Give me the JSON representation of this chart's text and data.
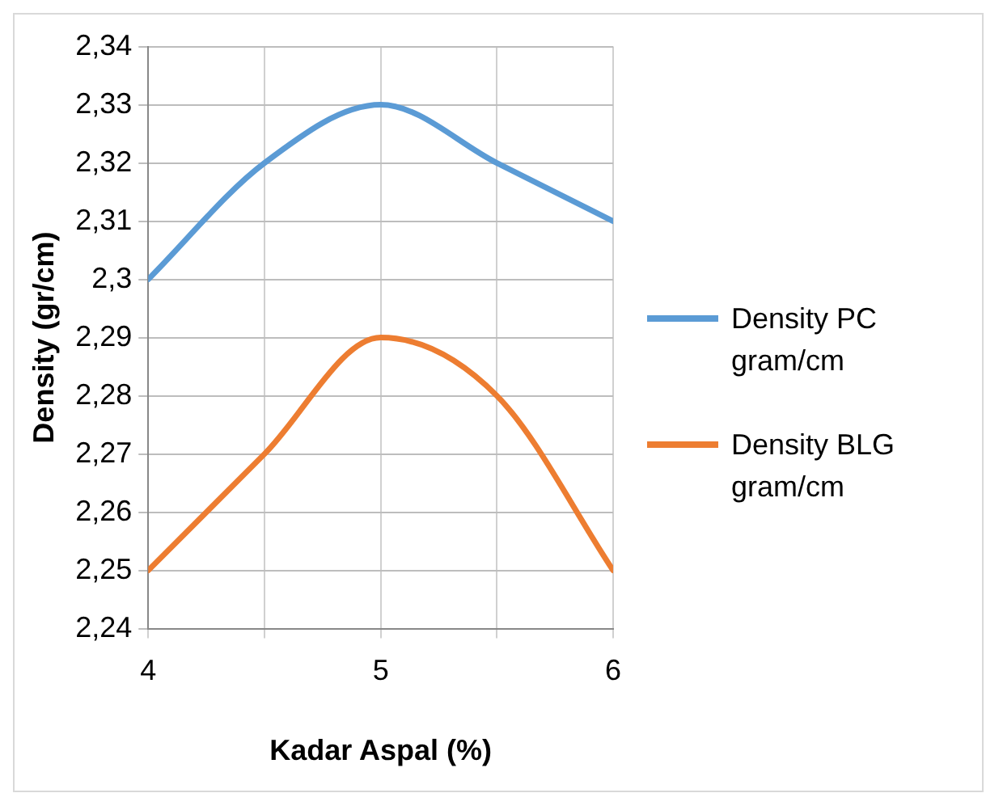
{
  "chart_data": {
    "type": "line",
    "xlabel": "Kadar Aspal (%)",
    "ylabel": "Density (gr/cm)",
    "x": [
      4,
      4.5,
      5,
      5.5,
      6
    ],
    "series": [
      {
        "name": "Density PC gram/cm",
        "color": "#5b9bd5",
        "values": [
          2.3,
          2.32,
          2.33,
          2.32,
          2.31
        ]
      },
      {
        "name": "Density BLG gram/cm",
        "color": "#ed7d31",
        "values": [
          2.25,
          2.27,
          2.29,
          2.28,
          2.25
        ]
      }
    ],
    "xlim": [
      4,
      6
    ],
    "xticks": [
      4,
      {
        "value": 4.5,
        "label": null
      },
      5,
      {
        "value": 5.5,
        "label": null
      },
      6
    ],
    "ylim": [
      2.24,
      2.34
    ],
    "yticks": [
      {
        "value": 2.24,
        "label": "2,24"
      },
      {
        "value": 2.25,
        "label": "2,25"
      },
      {
        "value": 2.26,
        "label": "2,26"
      },
      {
        "value": 2.27,
        "label": "2,27"
      },
      {
        "value": 2.28,
        "label": "2,28"
      },
      {
        "value": 2.29,
        "label": "2,29"
      },
      {
        "value": 2.3,
        "label": "2,3"
      },
      {
        "value": 2.31,
        "label": "2,31"
      },
      {
        "value": 2.32,
        "label": "2,32"
      },
      {
        "value": 2.33,
        "label": "2,33"
      },
      {
        "value": 2.34,
        "label": "2,34"
      }
    ],
    "grid": true,
    "legend": "right",
    "marker": "none",
    "line_style": "solid"
  }
}
